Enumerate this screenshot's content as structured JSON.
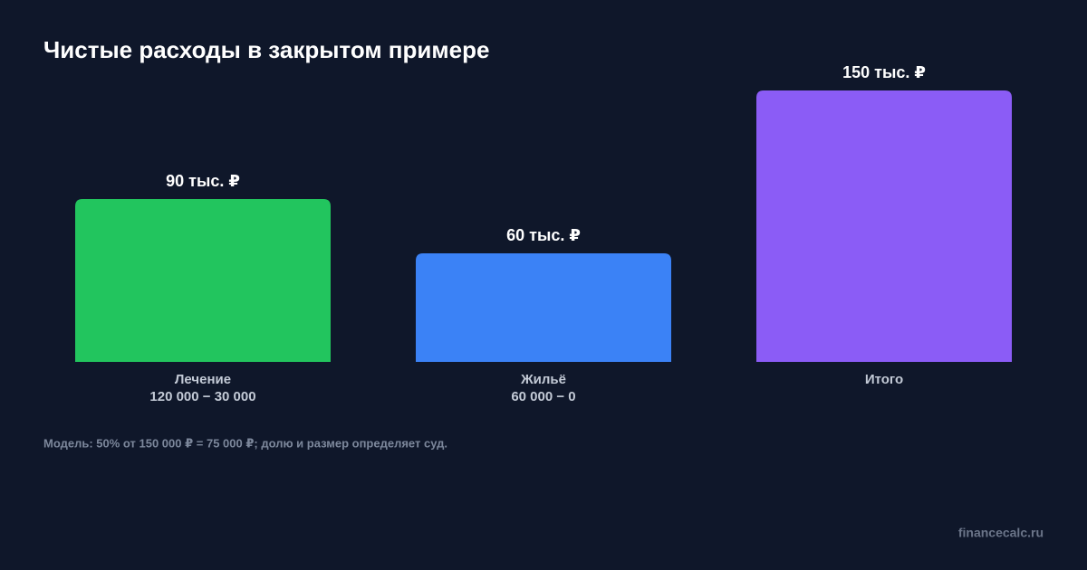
{
  "chart_data": {
    "type": "bar",
    "title": "Чистые расходы в закрытом примере",
    "categories": [
      "Лечение",
      "Жильё",
      "Итого"
    ],
    "category_notes": [
      "120 000 − 30 000",
      "60 000 − 0",
      null
    ],
    "values": [
      90,
      60,
      150
    ],
    "value_labels": [
      "90 тыс. ₽",
      "60 тыс. ₽",
      "150 тыс. ₽"
    ],
    "colors": [
      "#22c55e",
      "#3b82f6",
      "#8b5cf6"
    ],
    "ylim": [
      0,
      150
    ],
    "footnote": "Модель: 50% от 150 000 ₽ = 75 000 ₽; долю и размер определяет суд.",
    "watermark": "financecalc.ru"
  }
}
